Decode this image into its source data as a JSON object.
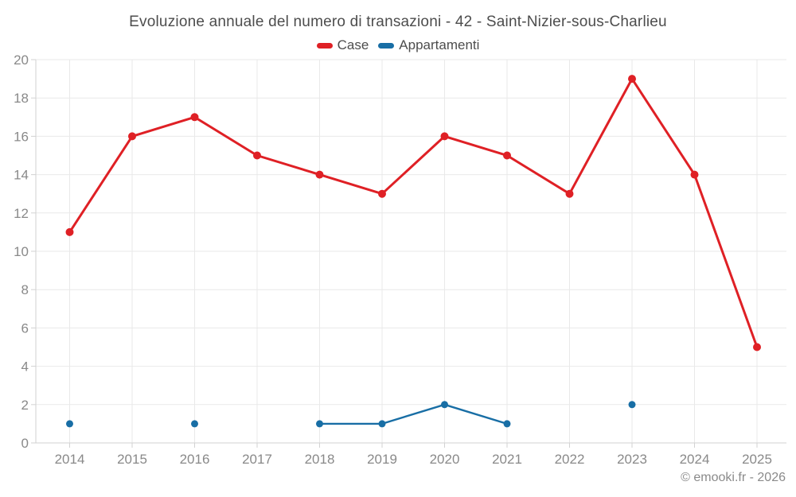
{
  "chart": {
    "title": "Evoluzione annuale del numero di transazioni - 42 - Saint-Nizier-sous-Charlieu",
    "footer": "© emooki.fr - 2026"
  },
  "chart_data": {
    "type": "line",
    "categories": [
      "2014",
      "2015",
      "2016",
      "2017",
      "2018",
      "2019",
      "2020",
      "2021",
      "2022",
      "2023",
      "2024",
      "2025"
    ],
    "series": [
      {
        "name": "Case",
        "color": "#df2025",
        "values": [
          11,
          16,
          17,
          15,
          14,
          13,
          16,
          15,
          13,
          19,
          14,
          5
        ]
      },
      {
        "name": "Appartamenti",
        "color": "#186ea5",
        "values": [
          1,
          null,
          1,
          null,
          1,
          1,
          2,
          1,
          null,
          2,
          null,
          null
        ]
      }
    ],
    "title": "Evoluzione annuale del numero di transazioni - 42 - Saint-Nizier-sous-Charlieu",
    "xlabel": "",
    "ylabel": "",
    "ylim": [
      0,
      20
    ],
    "ytick_step": 2,
    "grid": true,
    "legend_position": "top",
    "colors": {
      "gridline": "#e9e9e9",
      "axis": "#d2d2d2",
      "tick_label": "#898989",
      "title_text": "#4d4d4d"
    }
  }
}
